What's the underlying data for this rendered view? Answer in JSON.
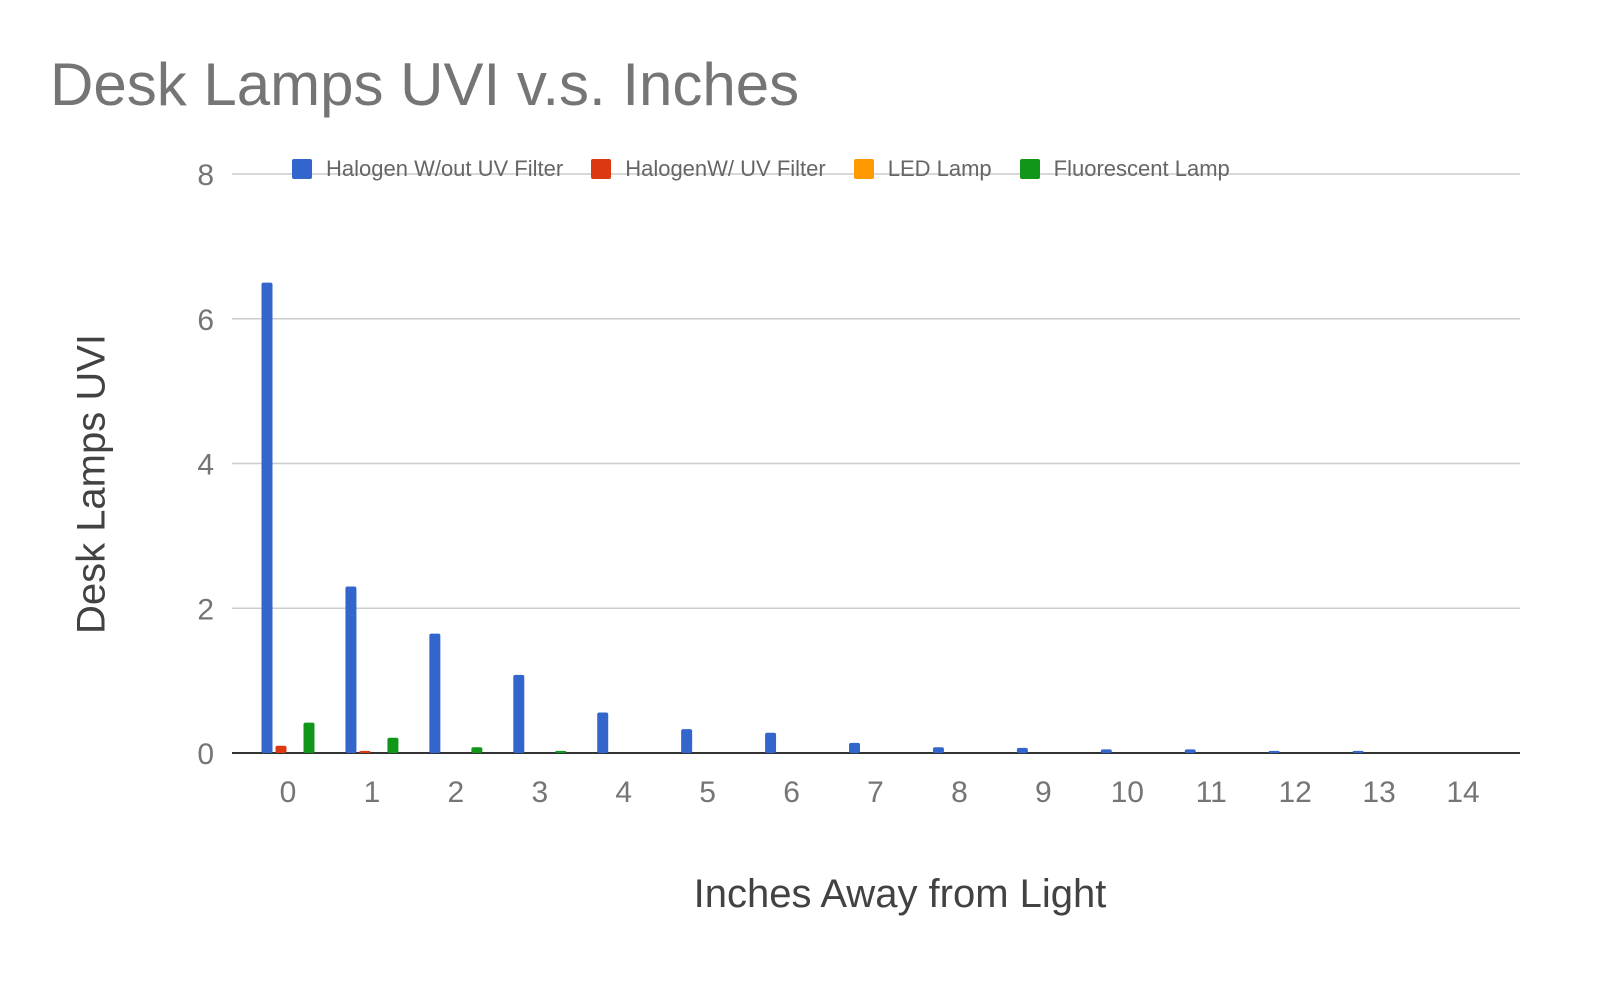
{
  "chart_data": {
    "type": "bar",
    "title": "Desk Lamps UVI v.s. Inches",
    "xlabel": "Inches Away from Light",
    "ylabel": "Desk Lamps UVI",
    "categories": [
      "0",
      "1",
      "2",
      "3",
      "4",
      "5",
      "6",
      "7",
      "8",
      "9",
      "10",
      "11",
      "12",
      "13",
      "14"
    ],
    "ylim": [
      0,
      8
    ],
    "yticks": [
      "0",
      "2",
      "4",
      "6",
      "8"
    ],
    "grid": true,
    "legend_position": "top",
    "series": [
      {
        "name": "Halogen W/out UV Filter",
        "color": "#3366cc",
        "values": [
          6.5,
          2.3,
          1.65,
          1.08,
          0.56,
          0.33,
          0.28,
          0.14,
          0.08,
          0.07,
          0.05,
          0.05,
          0.03,
          0.03,
          0
        ]
      },
      {
        "name": "HalogenW/ UV Filter",
        "color": "#dc3912",
        "values": [
          0.1,
          0.03,
          0,
          0,
          0,
          0,
          0,
          0,
          0,
          0,
          0,
          0,
          0,
          0,
          0
        ]
      },
      {
        "name": "LED Lamp",
        "color": "#ff9900",
        "values": [
          0,
          0,
          0,
          0,
          0,
          0,
          0,
          0,
          0,
          0,
          0,
          0,
          0,
          0,
          0
        ]
      },
      {
        "name": "Fluorescent Lamp",
        "color": "#109618",
        "values": [
          0.42,
          0.21,
          0.08,
          0.03,
          0,
          0,
          0,
          0,
          0,
          0,
          0,
          0,
          0,
          0,
          0
        ]
      }
    ]
  }
}
